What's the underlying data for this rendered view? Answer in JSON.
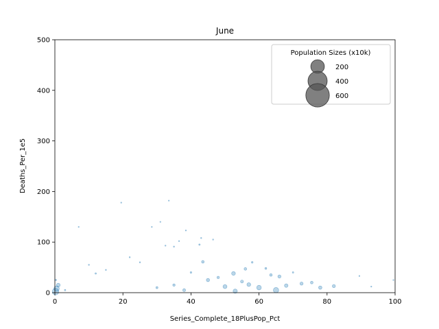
{
  "chart_data": {
    "type": "scatter",
    "title": "June",
    "xlabel": "Series_Complete_18PlusPop_Pct",
    "ylabel": "Deaths_Per_1e5",
    "xlim": [
      0,
      100
    ],
    "ylim": [
      0,
      500
    ],
    "xticks": [
      0,
      20,
      40,
      60,
      80,
      100
    ],
    "yticks": [
      0,
      100,
      200,
      300,
      400,
      500
    ],
    "grid": false,
    "point_color": "#1f77b4",
    "point_alpha": 0.3,
    "legend": {
      "title": "Population Sizes (x10k)",
      "placement": "top-right",
      "color": "#555555",
      "entries": [
        {
          "label": "200",
          "size_value": 200
        },
        {
          "label": "400",
          "size_value": 400
        },
        {
          "label": "600",
          "size_value": 600
        }
      ]
    },
    "points": [
      {
        "x": 0.3,
        "y": 25,
        "s": 3
      },
      {
        "x": 0.5,
        "y": 8,
        "s": 40
      },
      {
        "x": 1.0,
        "y": 15,
        "s": 20
      },
      {
        "x": 0.2,
        "y": 2,
        "s": 60
      },
      {
        "x": 3,
        "y": 5,
        "s": 3
      },
      {
        "x": 7,
        "y": 130,
        "s": 1
      },
      {
        "x": 19.5,
        "y": 178,
        "s": 1
      },
      {
        "x": 28.5,
        "y": 130,
        "s": 1
      },
      {
        "x": 31,
        "y": 140,
        "s": 1
      },
      {
        "x": 33.5,
        "y": 182,
        "s": 1
      },
      {
        "x": 38.5,
        "y": 123,
        "s": 1
      },
      {
        "x": 36.5,
        "y": 102,
        "s": 1
      },
      {
        "x": 32.5,
        "y": 93,
        "s": 2
      },
      {
        "x": 35,
        "y": 91,
        "s": 2
      },
      {
        "x": 43,
        "y": 108,
        "s": 2
      },
      {
        "x": 42.5,
        "y": 95,
        "s": 3
      },
      {
        "x": 46.5,
        "y": 105,
        "s": 2
      },
      {
        "x": 43.5,
        "y": 61,
        "s": 10
      },
      {
        "x": 52.5,
        "y": 38,
        "s": 20
      },
      {
        "x": 56,
        "y": 47,
        "s": 10
      },
      {
        "x": 63.5,
        "y": 35,
        "s": 10
      },
      {
        "x": 66,
        "y": 32,
        "s": 14
      },
      {
        "x": 72.5,
        "y": 18,
        "s": 14
      },
      {
        "x": 75.5,
        "y": 20,
        "s": 10
      },
      {
        "x": 78,
        "y": 10,
        "s": 16
      },
      {
        "x": 82,
        "y": 13,
        "s": 14
      },
      {
        "x": 89.5,
        "y": 33,
        "s": 1
      },
      {
        "x": 93,
        "y": 12,
        "s": 1
      },
      {
        "x": 99.5,
        "y": 25,
        "s": 1
      },
      {
        "x": 60,
        "y": 10,
        "s": 30
      },
      {
        "x": 65,
        "y": 5,
        "s": 40
      },
      {
        "x": 50,
        "y": 12,
        "s": 22
      },
      {
        "x": 68,
        "y": 14,
        "s": 18
      },
      {
        "x": 55,
        "y": 22,
        "s": 12
      },
      {
        "x": 48,
        "y": 30,
        "s": 8
      },
      {
        "x": 40,
        "y": 40,
        "s": 4
      },
      {
        "x": 25,
        "y": 60,
        "s": 2
      },
      {
        "x": 15,
        "y": 45,
        "s": 2
      },
      {
        "x": 10,
        "y": 55,
        "s": 2
      },
      {
        "x": 12,
        "y": 38,
        "s": 3
      },
      {
        "x": 22,
        "y": 70,
        "s": 2
      },
      {
        "x": 58,
        "y": 60,
        "s": 4
      },
      {
        "x": 62,
        "y": 48,
        "s": 5
      },
      {
        "x": 70,
        "y": 40,
        "s": 3
      },
      {
        "x": 45,
        "y": 25,
        "s": 15
      },
      {
        "x": 53,
        "y": 3,
        "s": 25
      },
      {
        "x": 57,
        "y": 16,
        "s": 20
      },
      {
        "x": 30,
        "y": 10,
        "s": 6
      },
      {
        "x": 35,
        "y": 15,
        "s": 8
      },
      {
        "x": 38,
        "y": 5,
        "s": 12
      }
    ]
  }
}
